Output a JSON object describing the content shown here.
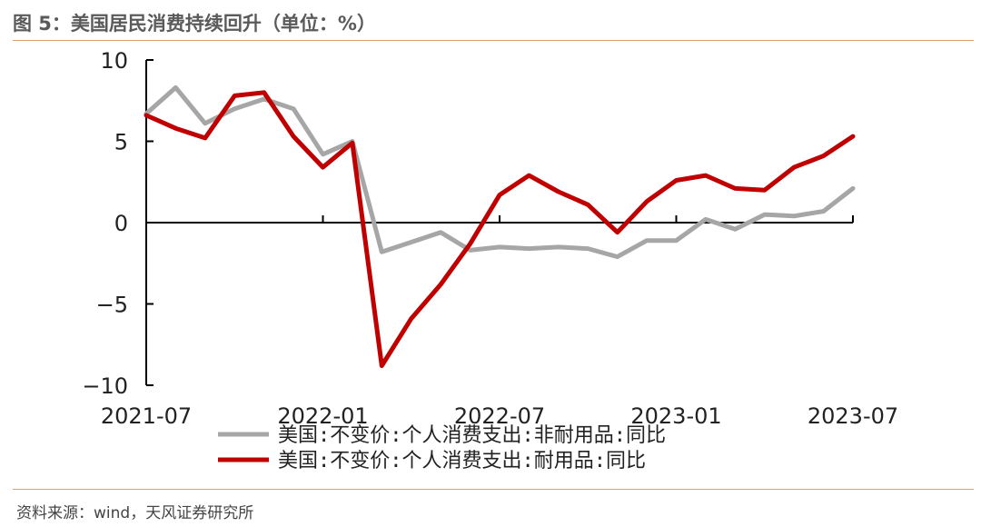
{
  "header": {
    "title": "图 5：美国居民消费持续回升（单位：%）"
  },
  "footer": {
    "source": "资料来源：wind，天风证券研究所"
  },
  "chart_data": {
    "type": "line",
    "title": "图 5：美国居民消费持续回升（单位：%）",
    "xlabel": "",
    "ylabel": "",
    "ylim": [
      -10,
      10
    ],
    "yticks": [
      10,
      5,
      0,
      -5,
      -10
    ],
    "ytick_labels": [
      "10",
      "5",
      "0",
      "−5",
      "−10"
    ],
    "x": [
      "2021-07",
      "2021-08",
      "2021-09",
      "2021-10",
      "2021-11",
      "2021-12",
      "2022-01",
      "2022-02",
      "2022-03",
      "2022-04",
      "2022-05",
      "2022-06",
      "2022-07",
      "2022-08",
      "2022-09",
      "2022-10",
      "2022-11",
      "2022-12",
      "2023-01",
      "2023-02",
      "2023-03",
      "2023-04",
      "2023-05",
      "2023-06",
      "2023-07"
    ],
    "xtick_labels": [
      "2021-07",
      "2022-01",
      "2022-07",
      "2023-01",
      "2023-07"
    ],
    "xtick_index": [
      0,
      6,
      12,
      18,
      24
    ],
    "legend_position": "bottom-center",
    "series": [
      {
        "name": "美国:不变价:个人消费支出:非耐用品:同比",
        "color": "#a6a6a6",
        "values": [
          6.7,
          8.3,
          6.1,
          7.0,
          7.6,
          7.0,
          4.2,
          5.0,
          -1.8,
          -1.2,
          -0.6,
          -1.7,
          -1.5,
          -1.6,
          -1.5,
          -1.6,
          -2.1,
          -1.1,
          -1.1,
          0.2,
          -0.4,
          0.5,
          0.4,
          0.7,
          2.1
        ]
      },
      {
        "name": "美国:不变价:个人消费支出:耐用品:同比",
        "color": "#c00000",
        "values": [
          6.6,
          5.8,
          5.2,
          7.8,
          8.0,
          5.3,
          3.4,
          4.9,
          -8.8,
          -5.9,
          -3.8,
          -1.3,
          1.7,
          2.9,
          1.9,
          1.1,
          -0.6,
          1.3,
          2.6,
          2.9,
          2.1,
          2.0,
          3.4,
          4.1,
          5.3
        ]
      }
    ]
  }
}
